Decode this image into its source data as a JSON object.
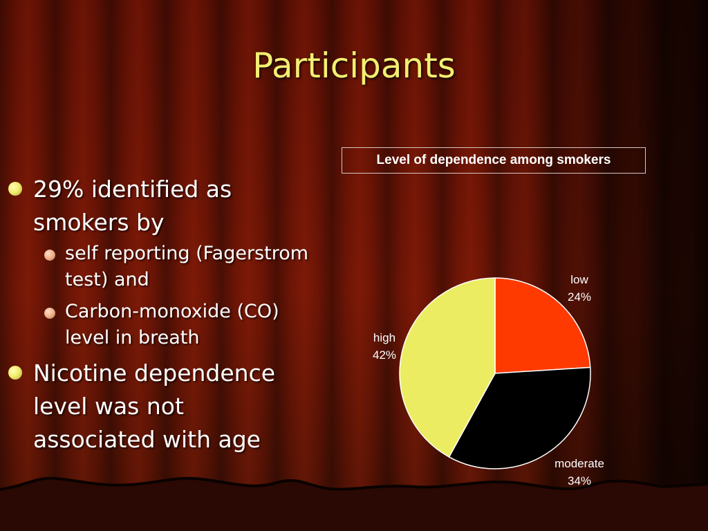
{
  "slide": {
    "title": "Participants",
    "bullets": [
      {
        "text": "29% identified as smokers by",
        "sub": [
          "self reporting (Fagerstrom test) and",
          " Carbon-monoxide (CO) level in breath"
        ]
      },
      {
        "text": "Nicotine dependence level was not associated with age",
        "sub": []
      }
    ]
  },
  "colors": {
    "title": "#f2ef72",
    "low": "#ff3a00",
    "moderate": "#000000",
    "high": "#ecec62"
  },
  "chart_data": {
    "type": "pie",
    "title": "Level of dependence among smokers",
    "slices": [
      {
        "label": "low",
        "value": 24,
        "value_label": "24%",
        "color": "#ff3a00"
      },
      {
        "label": "moderate",
        "value": 34,
        "value_label": "34%",
        "color": "#000000"
      },
      {
        "label": "high",
        "value": 42,
        "value_label": "42%",
        "color": "#ecec62"
      }
    ]
  }
}
